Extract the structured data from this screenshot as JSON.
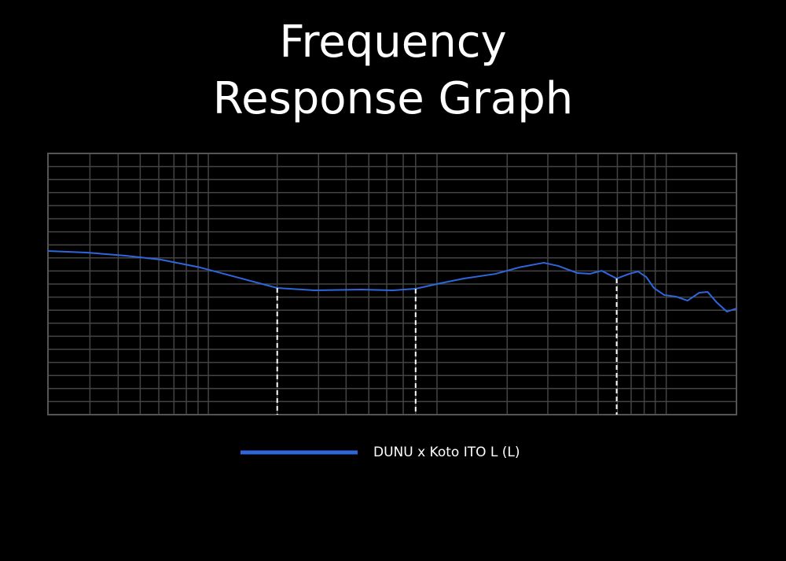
{
  "chart_data": {
    "type": "line",
    "title": "Frequency Response Graph",
    "x": [
      0,
      5.6,
      11.3,
      16.4,
      22.1,
      27.3,
      33.3,
      38.7,
      45.5,
      50.1,
      53.4,
      57.0,
      60.4,
      65.0,
      68.4,
      72.0,
      74.1,
      76.9,
      78.7,
      80.4,
      82.6,
      84.4,
      85.7,
      86.9,
      88.0,
      89.5,
      91.2,
      92.9,
      94.6,
      95.8,
      97.1,
      98.6,
      100
    ],
    "series": [
      {
        "name": "DUNU x Koto ITO L (L)",
        "color": "#2f66dc",
        "values": [
          12.53,
          12.41,
          12.17,
          11.87,
          11.27,
          10.54,
          9.7,
          9.52,
          9.58,
          9.52,
          9.64,
          10.06,
          10.42,
          10.78,
          11.27,
          11.63,
          11.39,
          10.84,
          10.78,
          11.02,
          10.42,
          10.78,
          10.96,
          10.54,
          9.7,
          9.16,
          9.04,
          8.73,
          9.34,
          9.4,
          8.61,
          7.89,
          8.13
        ]
      }
    ],
    "xlim": [
      0,
      100
    ],
    "xticks": [
      6.1,
      10.2,
      13.4,
      16.1,
      18.3,
      20.1,
      21.8,
      23.3,
      33.3,
      39.3,
      43.3,
      46.6,
      49.2,
      51.6,
      53.4,
      56.5,
      66.7,
      72.6,
      76.7,
      79.9,
      82.7,
      84.7,
      86.6,
      88.2,
      89.8
    ],
    "ylim": [
      0,
      20
    ],
    "yticks": [
      1,
      2,
      3,
      4,
      5,
      6,
      7,
      8,
      9,
      10,
      11,
      12,
      13,
      14,
      15,
      16,
      17,
      18,
      19
    ],
    "markers": [
      33.3,
      53.4,
      82.6
    ],
    "grid": true
  }
}
